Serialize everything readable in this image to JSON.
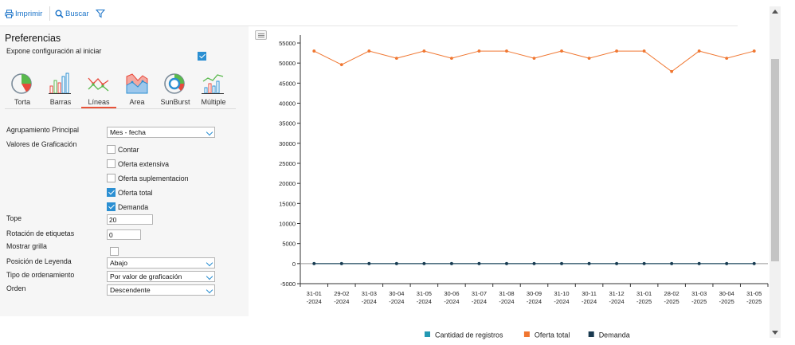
{
  "toolbar": {
    "print_label": "Imprimir",
    "search_label": "Buscar"
  },
  "panel": {
    "title": "Preferencias",
    "expose_label": "Expone configuración al iniciar",
    "expose_checked": true,
    "chart_types": [
      {
        "id": "pie",
        "label": "Torta"
      },
      {
        "id": "bar",
        "label": "Barras"
      },
      {
        "id": "line",
        "label": "Líneas",
        "active": true
      },
      {
        "id": "area",
        "label": "Area"
      },
      {
        "id": "sunburst",
        "label": "SunBurst"
      },
      {
        "id": "multiple",
        "label": "Múltiple"
      }
    ],
    "grouping_label": "Agrupamiento Principal",
    "grouping_value": "Mes - fecha",
    "values_label": "Valores de Graficación",
    "value_options": [
      {
        "label": "Contar",
        "checked": false
      },
      {
        "label": "Oferta extensiva",
        "checked": false
      },
      {
        "label": "Oferta suplementacion",
        "checked": false
      },
      {
        "label": "Oferta total",
        "checked": true
      },
      {
        "label": "Demanda",
        "checked": true
      }
    ],
    "tope_label": "Tope",
    "tope_value": "20",
    "rotation_label": "Rotación de etiquetas",
    "rotation_value": "0",
    "grid_label": "Mostrar grilla",
    "grid_checked": false,
    "legend_pos_label": "Posición de Leyenda",
    "legend_pos_value": "Abajo",
    "sort_type_label": "Tipo de ordenamiento",
    "sort_type_value": "Por valor de graficación",
    "order_label": "Orden",
    "order_value": "Descendente"
  },
  "colors": {
    "accent": "#2b8fd2",
    "active_tab": "#e8533a",
    "series_count": "#2499b3",
    "series_offer": "#f07630",
    "series_demand": "#1a3a50"
  },
  "chart_data": {
    "type": "line",
    "ylim": [
      -5000,
      57000
    ],
    "yticks": [
      -5000,
      0,
      5000,
      10000,
      15000,
      20000,
      25000,
      30000,
      35000,
      40000,
      45000,
      50000,
      55000
    ],
    "categories": [
      [
        "31-01",
        "-2024"
      ],
      [
        "29-02",
        "-2024"
      ],
      [
        "31-03",
        "-2024"
      ],
      [
        "30-04",
        "-2024"
      ],
      [
        "31-05",
        "-2024"
      ],
      [
        "30-06",
        "-2024"
      ],
      [
        "31-07",
        "-2024"
      ],
      [
        "31-08",
        "-2024"
      ],
      [
        "30-09",
        "-2024"
      ],
      [
        "31-10",
        "-2024"
      ],
      [
        "30-11",
        "-2024"
      ],
      [
        "31-12",
        "-2024"
      ],
      [
        "31-01",
        "-2025"
      ],
      [
        "28-02",
        "-2025"
      ],
      [
        "31-03",
        "-2025"
      ],
      [
        "30-04",
        "-2025"
      ],
      [
        "31-05",
        "-2025"
      ]
    ],
    "series": [
      {
        "name": "Cantidad de registros",
        "color": "#2499b3",
        "values": [
          0,
          0,
          0,
          0,
          0,
          0,
          0,
          0,
          0,
          0,
          0,
          0,
          0,
          0,
          0,
          0,
          0
        ]
      },
      {
        "name": "Oferta total",
        "color": "#f07630",
        "values": [
          53000,
          49600,
          53000,
          51200,
          53000,
          51200,
          53000,
          53000,
          51200,
          53000,
          51200,
          53000,
          53000,
          47900,
          53000,
          51200,
          53000
        ]
      },
      {
        "name": "Demanda",
        "color": "#1a3a50",
        "values": [
          0,
          0,
          0,
          0,
          0,
          0,
          0,
          0,
          0,
          0,
          0,
          0,
          0,
          0,
          0,
          0,
          0
        ]
      }
    ],
    "legend": "bottom"
  }
}
